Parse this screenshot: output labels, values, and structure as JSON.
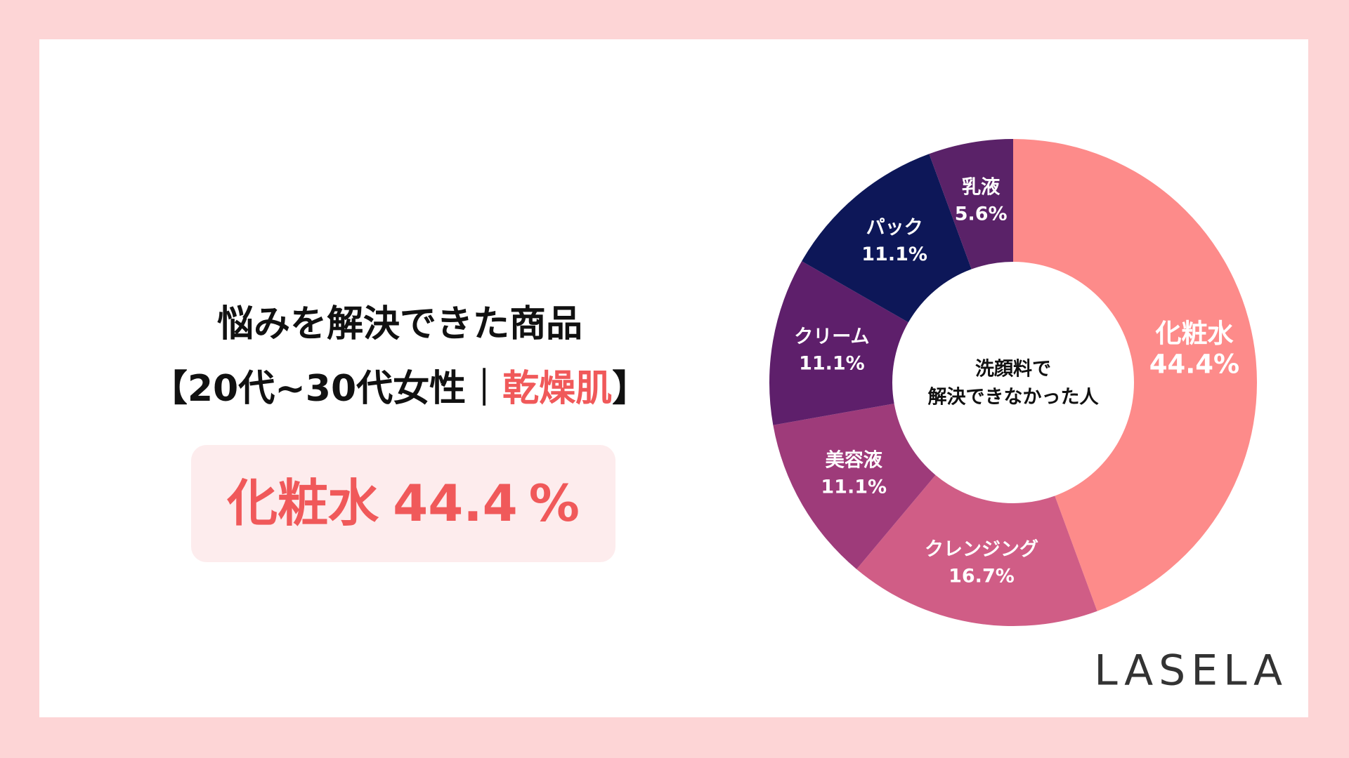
{
  "title_line1": "悩みを解決できた商品",
  "title_line2": {
    "prefix": "【20代~30代女性｜",
    "highlight": "乾燥肌",
    "suffix": "】"
  },
  "highlight": {
    "label": "化粧水",
    "value": 44.4,
    "unit": "%"
  },
  "brand": "LASELA",
  "chart_data": {
    "type": "donut",
    "center_label": [
      "洗顔料で",
      "解決できなかった人"
    ],
    "categories": [
      "化粧水",
      "クレンジング",
      "美容液",
      "クリーム",
      "パック",
      "乳液"
    ],
    "values": [
      44.4,
      16.7,
      11.1,
      11.1,
      11.1,
      5.6
    ],
    "value_labels": [
      "44.4%",
      "16.7%",
      "11.1%",
      "11.1%",
      "11.1%",
      "5.6%"
    ],
    "colors": [
      "#fd8b8a",
      "#d05d86",
      "#9e3b7a",
      "#5e1f6b",
      "#0d1758",
      "#5a2268"
    ]
  }
}
